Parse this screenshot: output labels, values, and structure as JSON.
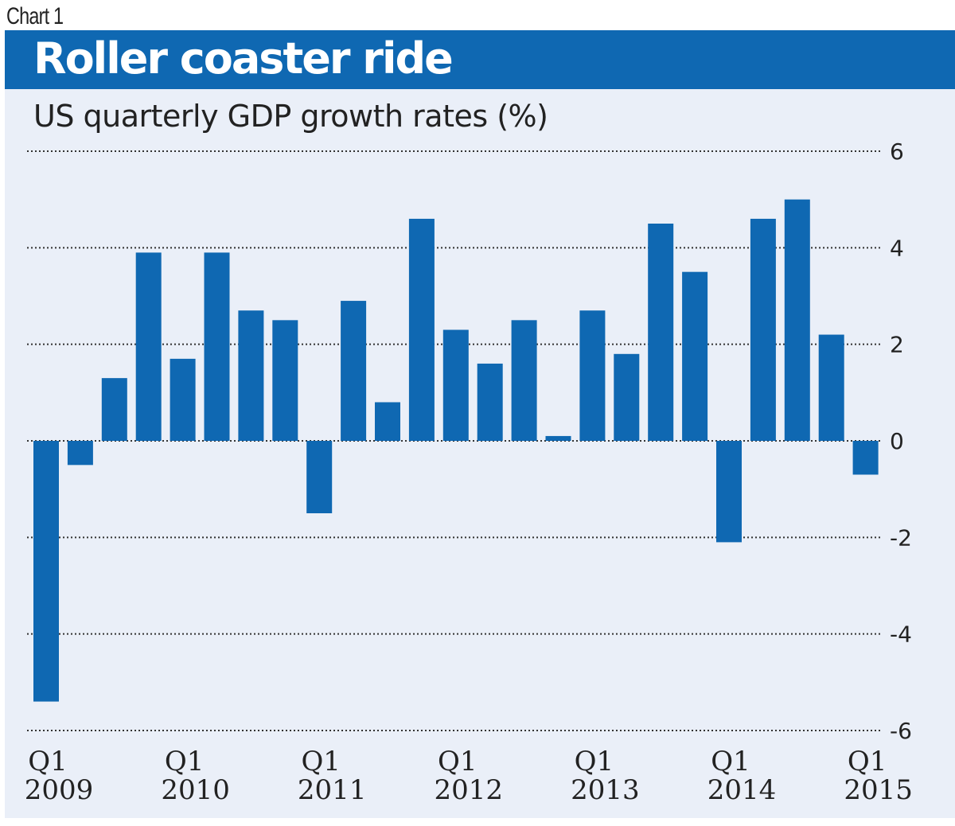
{
  "header": {
    "chart_label": "Chart 1",
    "title": "Roller coaster ride",
    "subtitle": "US quarterly GDP growth rates (%)"
  },
  "colors": {
    "bar": "#0f68b2",
    "title_bar": "#0f68b2",
    "panel_bg": "#eaeff8",
    "grid": "#333333"
  },
  "chart_data": {
    "type": "bar",
    "title": "Roller coaster ride",
    "subtitle": "US quarterly GDP growth rates (%)",
    "xlabel": "",
    "ylabel": "",
    "ylim": [
      -6,
      6
    ],
    "y_ticks": [
      6,
      4,
      2,
      0,
      -2,
      -4,
      -6
    ],
    "y_axis_position": "right",
    "grid": "dotted horizontal",
    "categories": [
      "Q1 2009",
      "Q2 2009",
      "Q3 2009",
      "Q4 2009",
      "Q1 2010",
      "Q2 2010",
      "Q3 2010",
      "Q4 2010",
      "Q1 2011",
      "Q2 2011",
      "Q3 2011",
      "Q4 2011",
      "Q1 2012",
      "Q2 2012",
      "Q3 2012",
      "Q4 2012",
      "Q1 2013",
      "Q2 2013",
      "Q3 2013",
      "Q4 2013",
      "Q1 2014",
      "Q2 2014",
      "Q3 2014",
      "Q4 2014",
      "Q1 2015"
    ],
    "values": [
      -5.4,
      -0.5,
      1.3,
      3.9,
      1.7,
      3.9,
      2.7,
      2.5,
      -1.5,
      2.9,
      0.8,
      4.6,
      2.3,
      1.6,
      2.5,
      0.1,
      2.7,
      1.8,
      4.5,
      3.5,
      -2.1,
      4.6,
      5.0,
      2.2,
      -0.7
    ],
    "x_tick_labels": [
      {
        "index": 0,
        "line1": "Q1",
        "line2": "2009"
      },
      {
        "index": 4,
        "line1": "Q1",
        "line2": "2010"
      },
      {
        "index": 8,
        "line1": "Q1",
        "line2": "2011"
      },
      {
        "index": 12,
        "line1": "Q1",
        "line2": "2012"
      },
      {
        "index": 16,
        "line1": "Q1",
        "line2": "2013"
      },
      {
        "index": 20,
        "line1": "Q1",
        "line2": "2014"
      },
      {
        "index": 24,
        "line1": "Q1",
        "line2": "2015"
      }
    ]
  }
}
